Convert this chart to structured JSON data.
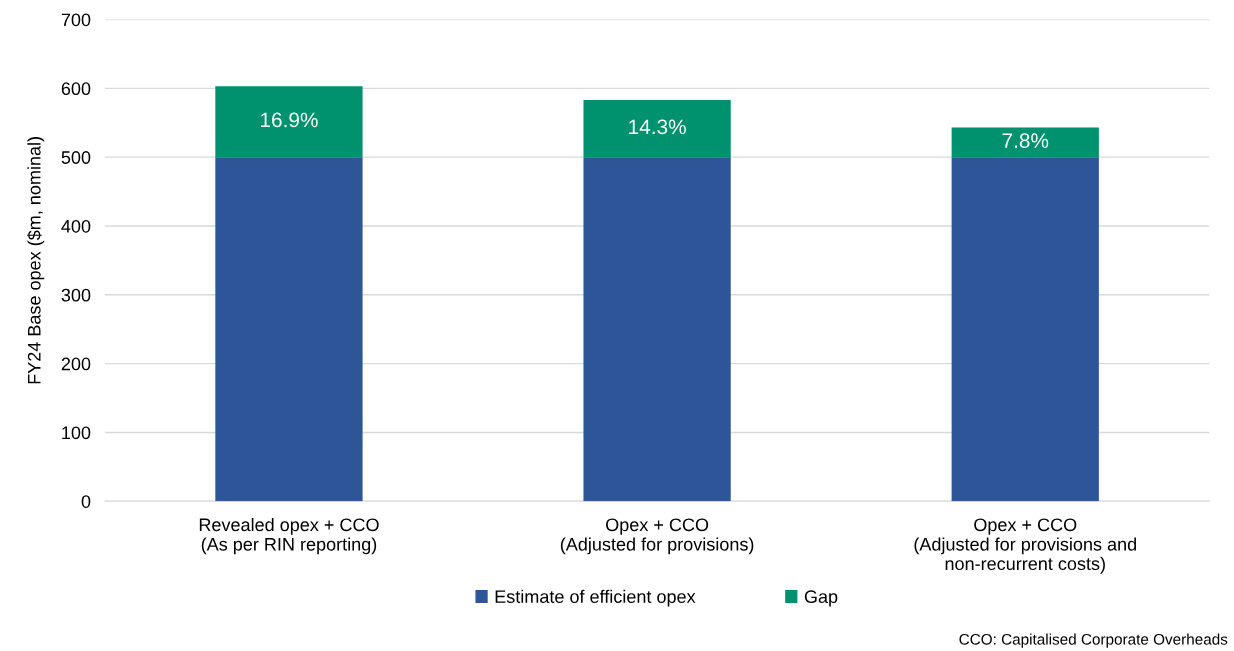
{
  "chart_data": {
    "type": "bar",
    "stacked": true,
    "ylabel": "FY24 Base opex ($m, nominal)",
    "categories": [
      "Revealed opex + CCO\n(As per RIN reporting)",
      "Opex + CCO\n(Adjusted for provisions)",
      "Opex + CCO\n(Adjusted for provisions and\nnon-recurrent costs)"
    ],
    "series": [
      {
        "name": "Estimate of efficient opex",
        "color": "#2e5597",
        "values": [
          500,
          500,
          500
        ]
      },
      {
        "name": "Gap",
        "color": "#00926e",
        "values": [
          103,
          83,
          43
        ]
      }
    ],
    "ylim": [
      0,
      700
    ],
    "yticks": [
      0,
      100,
      200,
      300,
      400,
      500,
      600,
      700
    ],
    "grid": "y",
    "legend": "bottom",
    "annotations": [
      "16.9%",
      "14.3%",
      "7.8%",
      "CCO: Capitalised Corporate Overheads"
    ]
  }
}
